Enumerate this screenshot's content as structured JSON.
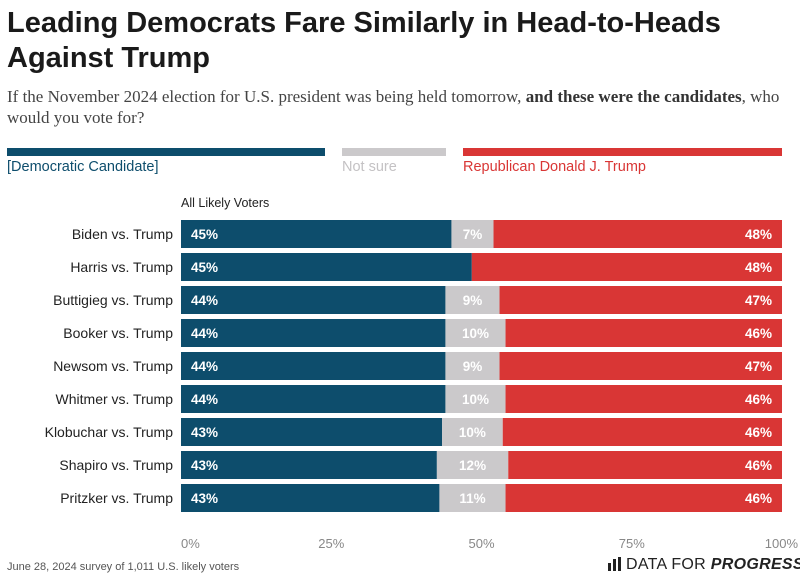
{
  "header": {
    "title": "Leading Democrats Fare Similarly in Head-to-Heads Against Trump",
    "subtitle_pre": "If the November 2024 election for U.S. president was being held tomorrow, ",
    "subtitle_bold": "and these were the candidates",
    "subtitle_post": ", who would you vote for?"
  },
  "legend": {
    "dem": "[Democratic Candidate]",
    "unsure": "Not sure",
    "rep": "Republican Donald J. Trump"
  },
  "colors": {
    "dem": "#0d4d6c",
    "unsure": "#cbc9cb",
    "rep": "#d93635",
    "unsure_text": "#ffffff"
  },
  "footer": {
    "note": "June 28, 2024 survey of 1,011 U.S. likely voters",
    "brand_regular": "DATA FOR ",
    "brand_bold": "PROGRESS",
    "brand_icon": "bar-chart-icon"
  },
  "chart_data": {
    "type": "bar",
    "stacked": true,
    "orientation": "horizontal",
    "group_label": "All Likely Voters",
    "categories": [
      "Biden vs. Trump",
      "Harris vs. Trump",
      "Buttigieg vs. Trump",
      "Booker vs. Trump",
      "Newsom vs. Trump",
      "Whitmer vs. Trump",
      "Klobuchar vs. Trump",
      "Shapiro vs. Trump",
      "Pritzker vs. Trump"
    ],
    "series": [
      {
        "name": "[Democratic Candidate]",
        "values": [
          45,
          45,
          44,
          44,
          44,
          44,
          43,
          43,
          43
        ]
      },
      {
        "name": "Not sure",
        "values": [
          7,
          null,
          9,
          10,
          9,
          10,
          10,
          12,
          11
        ]
      },
      {
        "name": "Republican Donald J. Trump",
        "values": [
          48,
          48,
          47,
          46,
          47,
          46,
          46,
          46,
          46
        ]
      }
    ],
    "xlim": [
      0,
      100
    ],
    "x_ticks": [
      "0%",
      "25%",
      "50%",
      "75%",
      "100%"
    ],
    "grid": false,
    "legend_position": "top"
  }
}
